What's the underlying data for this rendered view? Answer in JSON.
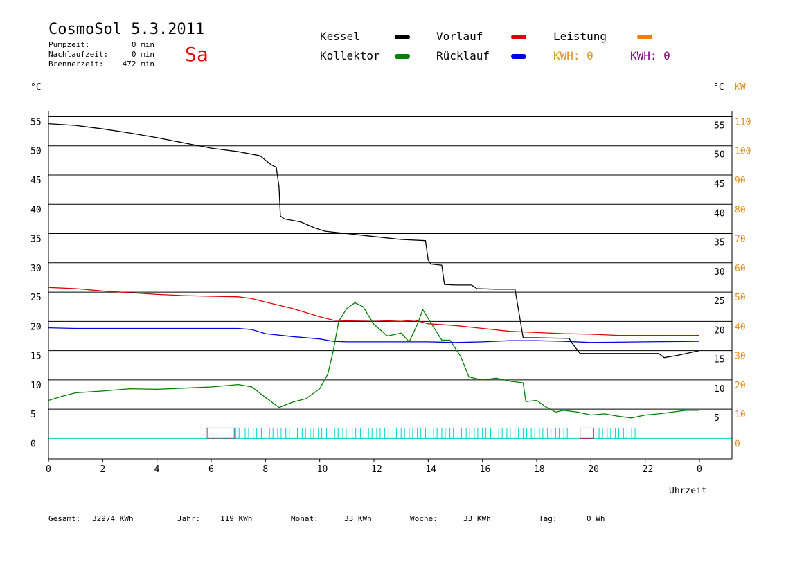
{
  "header": {
    "title": "CosmoSol 5.3.2011",
    "day": "Sa",
    "pumpzeit_label": "Pumpzeit:",
    "pumpzeit_value": "0 min",
    "nachlauf_label": "Nachlaufzeit:",
    "nachlauf_value": "0 min",
    "brenner_label": "Brennerzeit:",
    "brenner_value": "472 min"
  },
  "legend": {
    "kessel": "Kessel",
    "kollektor": "Kollektor",
    "vorlauf": "Vorlauf",
    "ruecklauf": "Rücklauf",
    "leistung": "Leistung",
    "kwh_orange": "KWH: 0",
    "kwh_purple": "KWH: 0"
  },
  "colors": {
    "kessel": "#000000",
    "kollektor": "#008000",
    "vorlauf": "#e00000",
    "ruecklauf": "#0000e0",
    "leistung": "#f08000",
    "kwh_orange": "#e09020",
    "kwh_purple": "#800080",
    "pump": "#00d0d0",
    "burner": "#a02060"
  },
  "axes": {
    "left_unit": "°C",
    "right_unit_c": "°C",
    "right_unit_kw": "KW",
    "xlabel": "Uhrzeit"
  },
  "footer": {
    "gesamt_label": "Gesamt:",
    "gesamt_value": "32974 KWh",
    "jahr_label": "Jahr:",
    "jahr_value": "119 KWh",
    "monat_label": "Monat:",
    "monat_value": "33 KWh",
    "woche_label": "Woche:",
    "woche_value": "33 KWh",
    "tag_label": "Tag:",
    "tag_value": "0 Wh"
  },
  "chart_data": {
    "type": "line",
    "xlabel": "Uhrzeit",
    "x_ticks": [
      "0",
      "2",
      "4",
      "6",
      "8",
      "10",
      "12",
      "14",
      "16",
      "18",
      "20",
      "22",
      "0"
    ],
    "x_range": [
      0,
      24
    ],
    "y_left_ticks": [
      0,
      5,
      10,
      15,
      20,
      25,
      30,
      35,
      40,
      45,
      50,
      55
    ],
    "y_left_range": [
      -3.5,
      56
    ],
    "y_right_c_ticks": [
      5,
      10,
      15,
      20,
      25,
      30,
      35,
      40,
      45,
      50,
      55
    ],
    "y_right_kw_ticks": [
      0,
      10,
      20,
      30,
      40,
      50,
      60,
      70,
      80,
      90,
      100,
      110
    ],
    "grid": "horizontal",
    "series": [
      {
        "name": "Kessel",
        "color": "#000000",
        "points": [
          [
            0,
            53.8
          ],
          [
            1,
            53.5
          ],
          [
            2,
            52.9
          ],
          [
            3,
            52.2
          ],
          [
            4,
            51.4
          ],
          [
            5,
            50.5
          ],
          [
            6,
            49.6
          ],
          [
            7,
            49.0
          ],
          [
            7.8,
            48.3
          ],
          [
            8.2,
            46.8
          ],
          [
            8.4,
            46.3
          ],
          [
            8.5,
            43
          ],
          [
            8.55,
            38
          ],
          [
            8.7,
            37.5
          ],
          [
            9.3,
            37.0
          ],
          [
            9.8,
            36.0
          ],
          [
            10.2,
            35.4
          ],
          [
            11,
            35.0
          ],
          [
            12,
            34.5
          ],
          [
            13,
            34.0
          ],
          [
            13.9,
            33.8
          ],
          [
            14.0,
            30.5
          ],
          [
            14.1,
            29.8
          ],
          [
            14.5,
            29.6
          ],
          [
            14.6,
            26.3
          ],
          [
            15,
            26.2
          ],
          [
            15.6,
            26.2
          ],
          [
            15.8,
            25.6
          ],
          [
            16.5,
            25.5
          ],
          [
            17.2,
            25.5
          ],
          [
            17.4,
            20
          ],
          [
            17.5,
            17.2
          ],
          [
            18,
            17.2
          ],
          [
            19.2,
            17.1
          ],
          [
            19.3,
            16.3
          ],
          [
            19.6,
            14.5
          ],
          [
            20,
            14.5
          ],
          [
            22.5,
            14.5
          ],
          [
            22.7,
            13.8
          ],
          [
            23.2,
            14.2
          ],
          [
            24,
            15.0
          ]
        ]
      },
      {
        "name": "Vorlauf",
        "color": "#e00000",
        "points": [
          [
            0,
            25.8
          ],
          [
            1,
            25.6
          ],
          [
            2,
            25.2
          ],
          [
            3,
            24.9
          ],
          [
            4,
            24.6
          ],
          [
            5,
            24.4
          ],
          [
            6,
            24.3
          ],
          [
            7,
            24.2
          ],
          [
            7.5,
            23.9
          ],
          [
            8,
            23.3
          ],
          [
            9,
            22.2
          ],
          [
            10,
            20.8
          ],
          [
            10.5,
            20.2
          ],
          [
            11,
            20.1
          ],
          [
            12,
            20.2
          ],
          [
            13,
            20.0
          ],
          [
            13.5,
            20.2
          ],
          [
            14,
            19.6
          ],
          [
            15,
            19.3
          ],
          [
            16,
            18.8
          ],
          [
            17,
            18.3
          ],
          [
            18,
            18.1
          ],
          [
            19,
            17.9
          ],
          [
            20,
            17.8
          ],
          [
            21,
            17.6
          ],
          [
            22,
            17.6
          ],
          [
            23,
            17.6
          ],
          [
            24,
            17.6
          ]
        ]
      },
      {
        "name": "Rücklauf",
        "color": "#0000e0",
        "points": [
          [
            0,
            18.9
          ],
          [
            1,
            18.8
          ],
          [
            2,
            18.8
          ],
          [
            3,
            18.8
          ],
          [
            4,
            18.8
          ],
          [
            5,
            18.8
          ],
          [
            6,
            18.8
          ],
          [
            7,
            18.8
          ],
          [
            7.5,
            18.6
          ],
          [
            8,
            17.9
          ],
          [
            9,
            17.4
          ],
          [
            10,
            17.0
          ],
          [
            10.5,
            16.6
          ],
          [
            11,
            16.5
          ],
          [
            13,
            16.5
          ],
          [
            14,
            16.5
          ],
          [
            15,
            16.4
          ],
          [
            16,
            16.5
          ],
          [
            17,
            16.7
          ],
          [
            18,
            16.7
          ],
          [
            19,
            16.6
          ],
          [
            20,
            16.4
          ],
          [
            22,
            16.5
          ],
          [
            24,
            16.6
          ]
        ]
      },
      {
        "name": "Kollektor",
        "color": "#008000",
        "points": [
          [
            0,
            6.5
          ],
          [
            0.5,
            7.2
          ],
          [
            1,
            7.8
          ],
          [
            2,
            8.1
          ],
          [
            3,
            8.5
          ],
          [
            4,
            8.4
          ],
          [
            5,
            8.6
          ],
          [
            6,
            8.8
          ],
          [
            7,
            9.2
          ],
          [
            7.5,
            8.8
          ],
          [
            8,
            7.0
          ],
          [
            8.5,
            5.3
          ],
          [
            9,
            6.2
          ],
          [
            9.5,
            6.8
          ],
          [
            10,
            8.5
          ],
          [
            10.3,
            11
          ],
          [
            10.5,
            15
          ],
          [
            10.7,
            20
          ],
          [
            11,
            22.2
          ],
          [
            11.3,
            23.2
          ],
          [
            11.6,
            22.5
          ],
          [
            12,
            19.5
          ],
          [
            12.5,
            17.5
          ],
          [
            13,
            18
          ],
          [
            13.3,
            16.5
          ],
          [
            13.6,
            19.5
          ],
          [
            13.8,
            22
          ],
          [
            14.2,
            19
          ],
          [
            14.5,
            16.8
          ],
          [
            14.8,
            16.8
          ],
          [
            15.2,
            14
          ],
          [
            15.5,
            10.5
          ],
          [
            16,
            10
          ],
          [
            16.5,
            10.3
          ],
          [
            17,
            9.8
          ],
          [
            17.5,
            9.5
          ],
          [
            17.6,
            6.3
          ],
          [
            18,
            6.5
          ],
          [
            18.3,
            5.5
          ],
          [
            18.7,
            4.5
          ],
          [
            19,
            4.8
          ],
          [
            19.5,
            4.5
          ],
          [
            20,
            4.0
          ],
          [
            20.5,
            4.2
          ],
          [
            21,
            3.8
          ],
          [
            21.5,
            3.5
          ],
          [
            22,
            4.0
          ],
          [
            22.5,
            4.2
          ],
          [
            23,
            4.5
          ],
          [
            23.5,
            4.8
          ],
          [
            24,
            4.8
          ]
        ]
      }
    ],
    "bars": {
      "pump_cycles_start_hours": [
        6.9,
        7.25,
        7.55,
        7.85,
        8.15,
        8.45,
        8.75,
        9.05,
        9.35,
        9.65,
        9.95,
        10.25,
        10.55,
        10.85,
        11.2,
        11.5,
        11.8,
        12.1,
        12.4,
        12.7,
        13.0,
        13.3,
        13.6,
        13.9,
        14.2,
        14.5,
        14.8,
        15.1,
        15.4,
        15.7,
        16.0,
        16.3,
        16.6,
        16.9,
        17.2,
        17.5,
        17.8,
        18.1,
        18.4,
        18.7,
        19.0,
        20.3,
        20.6,
        20.9,
        21.2,
        21.5
      ]
    }
  }
}
